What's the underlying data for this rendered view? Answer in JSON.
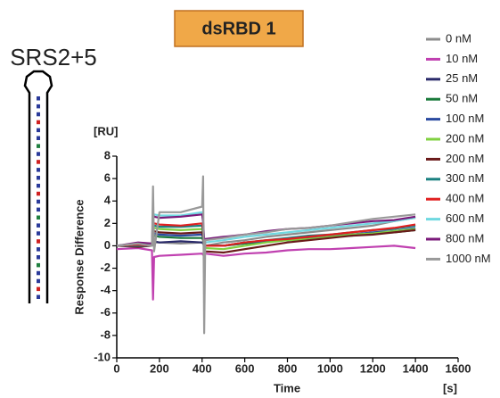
{
  "chart_data": {
    "type": "line",
    "title": "dsRBD 1",
    "annotation": "SRS2+5",
    "x_label": "Time",
    "x_unit": "[s]",
    "y_label": "Response Difference",
    "y_unit": "[RU]",
    "xlim": [
      0,
      1600
    ],
    "xticks": [
      0,
      200,
      400,
      600,
      800,
      1000,
      1200,
      1400,
      1600
    ],
    "ylim": [
      -10,
      8
    ],
    "yticks": [
      -10,
      -8,
      -6,
      -4,
      -2,
      0,
      2,
      4,
      6,
      8
    ],
    "legend": "top-right",
    "x": [
      0,
      100,
      165,
      170,
      175,
      200,
      300,
      400,
      405,
      410,
      415,
      500,
      600,
      700,
      800,
      900,
      1000,
      1100,
      1200,
      1300,
      1400
    ],
    "series": [
      {
        "name": "0 nM",
        "color": "#8c8c8c",
        "values": [
          0,
          0.2,
          0,
          0.2,
          0.3,
          0.3,
          0.2,
          0.3,
          0.2,
          0,
          0,
          0.3,
          0.5,
          0.8,
          1,
          1.2,
          1.4,
          1.6,
          1.8,
          2.2,
          2.5
        ]
      },
      {
        "name": "10 nM",
        "color": "#c040b0",
        "values": [
          -0.3,
          -0.2,
          -0.4,
          -4.8,
          -1,
          -0.9,
          -0.8,
          -0.7,
          -0.8,
          -0.6,
          -0.7,
          -0.9,
          -0.7,
          -0.6,
          -0.4,
          -0.3,
          -0.3,
          -0.2,
          -0.1,
          0,
          -0.2
        ]
      },
      {
        "name": "25 nM",
        "color": "#2a2a6a",
        "values": [
          0,
          0.1,
          0,
          0.5,
          0.4,
          0.3,
          0.4,
          0.3,
          0.2,
          0,
          0,
          0,
          0.2,
          0.4,
          0.5,
          0.6,
          0.8,
          1,
          1.1,
          1.3,
          1.5
        ]
      },
      {
        "name": "50 nM",
        "color": "#1a7a3a",
        "values": [
          0,
          0.1,
          0,
          0.8,
          0.9,
          0.8,
          0.7,
          0.7,
          0.5,
          0,
          0,
          0,
          0.2,
          0.4,
          0.5,
          0.6,
          0.8,
          0.9,
          1.1,
          1.2,
          1.4
        ]
      },
      {
        "name": "100 nM",
        "color": "#2a4aa0",
        "values": [
          0,
          0.1,
          0,
          1.2,
          1.1,
          1,
          0.9,
          1,
          0.7,
          0,
          0,
          0,
          0.3,
          0.4,
          0.6,
          0.7,
          0.9,
          1,
          1.2,
          1.3,
          1.6
        ]
      },
      {
        "name": "200 nM",
        "color": "#80d040",
        "values": [
          0,
          0,
          0,
          1.5,
          1.6,
          1.5,
          1.4,
          1.5,
          1,
          0,
          -0.2,
          -0.3,
          0,
          0.3,
          0.5,
          0.6,
          0.8,
          1,
          1.1,
          1.3,
          1.5
        ]
      },
      {
        "name": "200 nM",
        "color": "#6a1a1a",
        "values": [
          0,
          -0.1,
          0,
          1.4,
          1.3,
          1.2,
          1.1,
          1.2,
          0.8,
          -0.3,
          -0.5,
          -0.6,
          -0.3,
          0,
          0.3,
          0.5,
          0.7,
          0.9,
          1,
          1.2,
          1.4
        ]
      },
      {
        "name": "300 nM",
        "color": "#1a8080",
        "values": [
          0,
          0,
          0,
          1.8,
          1.8,
          1.7,
          1.7,
          1.8,
          1.2,
          0,
          0,
          0,
          0.3,
          0.5,
          0.7,
          0.9,
          1,
          1.2,
          1.4,
          1.5,
          1.8
        ]
      },
      {
        "name": "400 nM",
        "color": "#e02020",
        "values": [
          0,
          0.1,
          0,
          2,
          2,
          1.9,
          1.8,
          2,
          1.5,
          0,
          0,
          0,
          0.3,
          0.5,
          0.6,
          0.8,
          1,
          1.2,
          1.4,
          1.6,
          1.9
        ]
      },
      {
        "name": "600 nM",
        "color": "#70d8e0",
        "values": [
          0,
          0.2,
          0,
          2.8,
          2.8,
          2.7,
          2.7,
          3,
          2,
          0.5,
          0.3,
          0.5,
          0.8,
          1,
          1.2,
          1.4,
          1.6,
          1.8,
          2,
          2.2,
          2.5
        ]
      },
      {
        "name": "800 nM",
        "color": "#7a1a7a",
        "values": [
          0,
          0.3,
          0.2,
          2.8,
          2.6,
          2.5,
          2.6,
          2.8,
          2.2,
          0.5,
          0.6,
          0.8,
          1,
          1.3,
          1.5,
          1.6,
          1.8,
          2,
          2.2,
          2.3,
          2.6
        ]
      },
      {
        "name": "1000 nM",
        "color": "#999999",
        "values": [
          0,
          0.2,
          0,
          5.3,
          -0.5,
          3,
          3,
          3.5,
          6.2,
          -7.8,
          0.5,
          0.7,
          1,
          1.2,
          1.5,
          1.6,
          1.8,
          2.1,
          2.4,
          2.6,
          2.8
        ]
      }
    ]
  }
}
